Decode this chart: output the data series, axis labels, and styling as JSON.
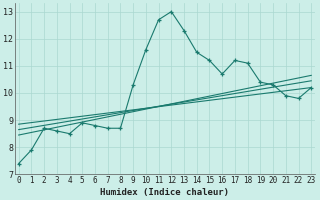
{
  "xlabel": "Humidex (Indice chaleur)",
  "bg_color": "#cceee8",
  "line_color": "#1a7a6e",
  "grid_color": "#aad8d0",
  "x_data": [
    0,
    1,
    2,
    3,
    4,
    5,
    6,
    7,
    8,
    9,
    10,
    11,
    12,
    13,
    14,
    15,
    16,
    17,
    18,
    19,
    20,
    21,
    22,
    23
  ],
  "y_main": [
    7.4,
    7.9,
    8.7,
    8.6,
    8.5,
    8.9,
    8.8,
    8.7,
    8.7,
    10.3,
    11.6,
    12.7,
    13.0,
    12.3,
    11.5,
    11.2,
    10.7,
    11.2,
    11.1,
    10.4,
    10.3,
    9.9,
    9.8,
    10.2
  ],
  "trend_lines": [
    {
      "x0": 0,
      "y0": 8.65,
      "x1": 23,
      "y1": 10.45
    },
    {
      "x0": 0,
      "y0": 8.85,
      "x1": 23,
      "y1": 10.2
    },
    {
      "x0": 0,
      "y0": 8.45,
      "x1": 23,
      "y1": 10.65
    }
  ],
  "xlim": [
    -0.3,
    23.3
  ],
  "ylim": [
    7.0,
    13.3
  ],
  "yticks": [
    7,
    8,
    9,
    10,
    11,
    12,
    13
  ],
  "xticks": [
    0,
    1,
    2,
    3,
    4,
    5,
    6,
    7,
    8,
    9,
    10,
    11,
    12,
    13,
    14,
    15,
    16,
    17,
    18,
    19,
    20,
    21,
    22,
    23
  ],
  "tick_fontsize": 5.5,
  "label_fontsize": 6.5
}
